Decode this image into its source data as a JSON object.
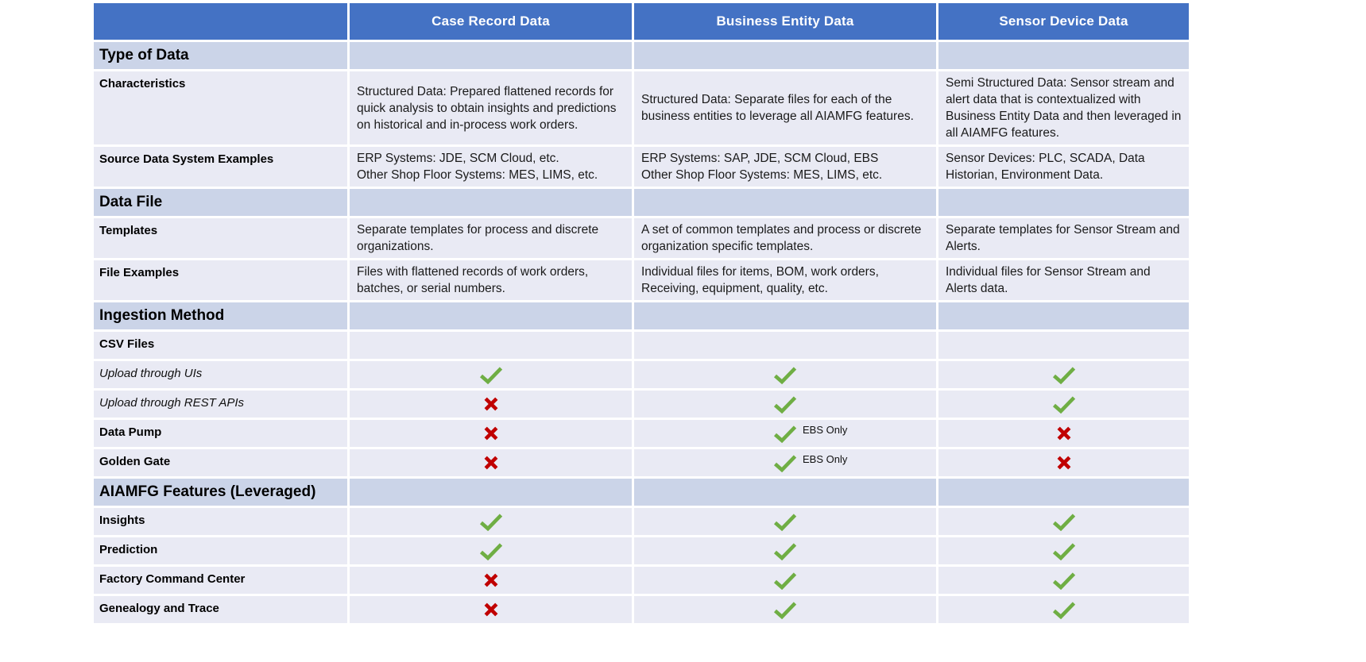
{
  "table": {
    "columns": [
      "",
      "Case Record Data",
      "Business Entity Data",
      "Sensor Device Data"
    ],
    "colors": {
      "header_bg": "#4472C4",
      "header_text": "#FFFFFF",
      "section_row_bg": "#CBD4E8",
      "data_row_bg": "#E9EAF4",
      "check_green": "#6FAE44",
      "cross_red": "#C00000"
    },
    "rows": [
      {
        "kind": "section",
        "label": "Type of Data"
      },
      {
        "kind": "text",
        "label": "Characteristics",
        "cells": [
          {
            "text": "Structured Data: Prepared flattened records for quick analysis to obtain insights and predictions on historical and in-process work orders."
          },
          {
            "text": "Structured Data: Separate files for each of the business entities to leverage all AIAMFG features."
          },
          {
            "text": "Semi Structured Data: Sensor stream and alert data that is contextualized with Business Entity Data and then leveraged in all AIAMFG features."
          }
        ]
      },
      {
        "kind": "text",
        "label": "Source Data System Examples",
        "cells": [
          {
            "text": "ERP Systems: JDE, SCM Cloud, etc.\nOther Shop Floor Systems: MES, LIMS, etc."
          },
          {
            "text": "ERP Systems: SAP, JDE, SCM Cloud, EBS\nOther Shop Floor Systems: MES, LIMS, etc."
          },
          {
            "text": "Sensor Devices: PLC, SCADA, Data Historian, Environment Data."
          }
        ]
      },
      {
        "kind": "section",
        "label": "Data File"
      },
      {
        "kind": "text",
        "label": "Templates",
        "cells": [
          {
            "text": "Separate templates for process and discrete organizations."
          },
          {
            "text": "A set of common templates and process or discrete organization specific templates."
          },
          {
            "text": "Separate templates for Sensor Stream and Alerts."
          }
        ]
      },
      {
        "kind": "text",
        "label": "File Examples",
        "cells": [
          {
            "text": "Files with flattened records of work orders, batches, or serial numbers."
          },
          {
            "text": "Individual files for items, BOM, work orders, Receiving, equipment, quality, etc."
          },
          {
            "text": "Individual files for Sensor Stream and Alerts data."
          }
        ]
      },
      {
        "kind": "section",
        "label": "Ingestion Method"
      },
      {
        "kind": "marks",
        "label": "CSV Files",
        "style": "bold",
        "cells": [
          {
            "mark": ""
          },
          {
            "mark": ""
          },
          {
            "mark": ""
          }
        ]
      },
      {
        "kind": "marks",
        "label": "Upload through UIs",
        "style": "italic",
        "cells": [
          {
            "mark": "check"
          },
          {
            "mark": "check"
          },
          {
            "mark": "check"
          }
        ]
      },
      {
        "kind": "marks",
        "label": "Upload through REST APIs",
        "style": "italic",
        "cells": [
          {
            "mark": "cross"
          },
          {
            "mark": "check"
          },
          {
            "mark": "check"
          }
        ]
      },
      {
        "kind": "marks",
        "label": "Data Pump",
        "style": "bold",
        "cells": [
          {
            "mark": "cross"
          },
          {
            "mark": "check",
            "note": "EBS Only"
          },
          {
            "mark": "cross"
          }
        ]
      },
      {
        "kind": "marks",
        "label": "Golden Gate",
        "style": "bold",
        "cells": [
          {
            "mark": "cross"
          },
          {
            "mark": "check",
            "note": "EBS Only"
          },
          {
            "mark": "cross"
          }
        ]
      },
      {
        "kind": "section",
        "label": "AIAMFG Features (Leveraged)"
      },
      {
        "kind": "marks",
        "label": "Insights",
        "style": "bold",
        "cells": [
          {
            "mark": "check"
          },
          {
            "mark": "check"
          },
          {
            "mark": "check"
          }
        ]
      },
      {
        "kind": "marks",
        "label": "Prediction",
        "style": "bold",
        "cells": [
          {
            "mark": "check"
          },
          {
            "mark": "check"
          },
          {
            "mark": "check"
          }
        ]
      },
      {
        "kind": "marks",
        "label": "Factory Command Center",
        "style": "bold",
        "cells": [
          {
            "mark": "cross"
          },
          {
            "mark": "check"
          },
          {
            "mark": "check"
          }
        ]
      },
      {
        "kind": "marks",
        "label": "Genealogy and Trace",
        "style": "bold",
        "cells": [
          {
            "mark": "cross"
          },
          {
            "mark": "check"
          },
          {
            "mark": "check"
          }
        ]
      }
    ]
  }
}
